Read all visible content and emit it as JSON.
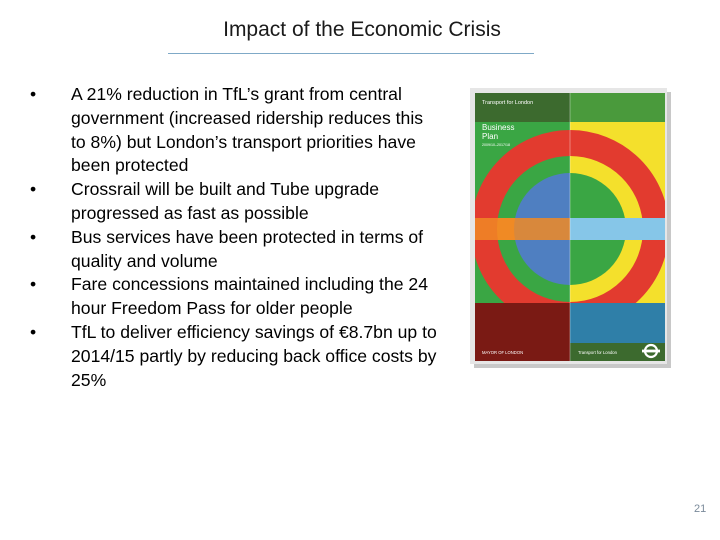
{
  "slide": {
    "title": "Impact of the Economic Crisis",
    "page_number": "21",
    "bullets": [
      "A 21% reduction in TfL’s grant from central government (increased ridership reduces this to 8%) but London’s transport priorities have been protected",
      "Crossrail will be built and Tube upgrade progressed as fast as possible",
      "Bus services have been protected in terms of quality and volume",
      "Fare concessions maintained including the 24 hour Freedom Pass for older people",
      "TfL to deliver efficiency savings of €8.7bn up to 2014/15 partly by reducing back office costs by 25%"
    ]
  },
  "cover": {
    "header": "Transport for London",
    "title_line1": "Business",
    "title_line2": "Plan",
    "years": "2009/10–2017/18",
    "footer_left": "MAYOR OF LONDON",
    "footer_right": "Transport for London",
    "colors": {
      "green": "#3aa644",
      "blue": "#4f7fc1",
      "red": "#e23b2f",
      "yellow": "#f4e02c",
      "orange": "#f08a24",
      "teal": "#2f7fa8",
      "brown": "#8b2a1e",
      "olive": "#3c6a2e",
      "darkred": "#7a1a14",
      "lightblue": "#86c6e8"
    }
  }
}
